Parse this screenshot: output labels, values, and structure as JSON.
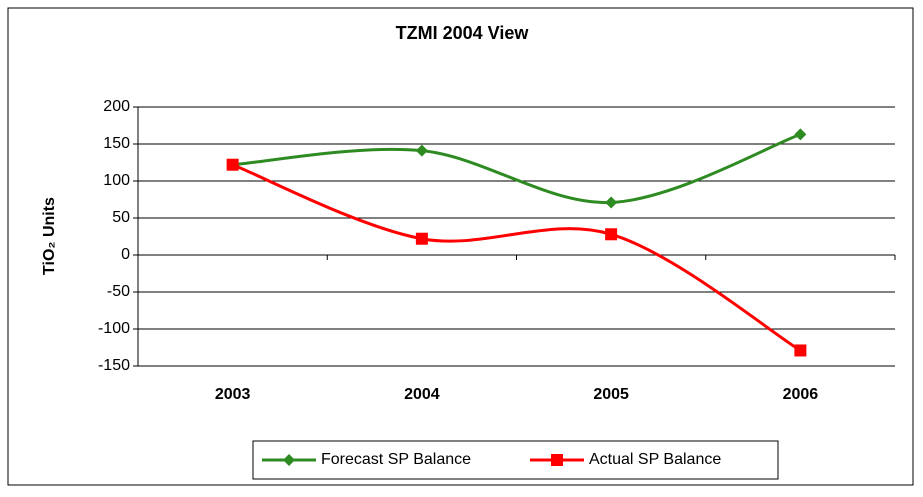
{
  "chart_data": {
    "type": "line",
    "title": "TZMI 2004 View",
    "y_label": "TiO₂ Units",
    "categories": [
      "2003",
      "2004",
      "2005",
      "2006"
    ],
    "series": [
      {
        "name": "Forecast SP Balance",
        "color": "#2e8b22",
        "marker": "diamond",
        "values": [
          122,
          141,
          71,
          163
        ]
      },
      {
        "name": "Actual SP Balance",
        "color": "#ff0000",
        "marker": "square",
        "values": [
          122,
          22,
          28,
          -129
        ]
      }
    ],
    "ylim": [
      -150,
      200
    ],
    "yticks": [
      -150,
      -100,
      -50,
      0,
      50,
      100,
      150,
      200
    ],
    "grid": true,
    "smooth": true,
    "legend": "bottom"
  }
}
